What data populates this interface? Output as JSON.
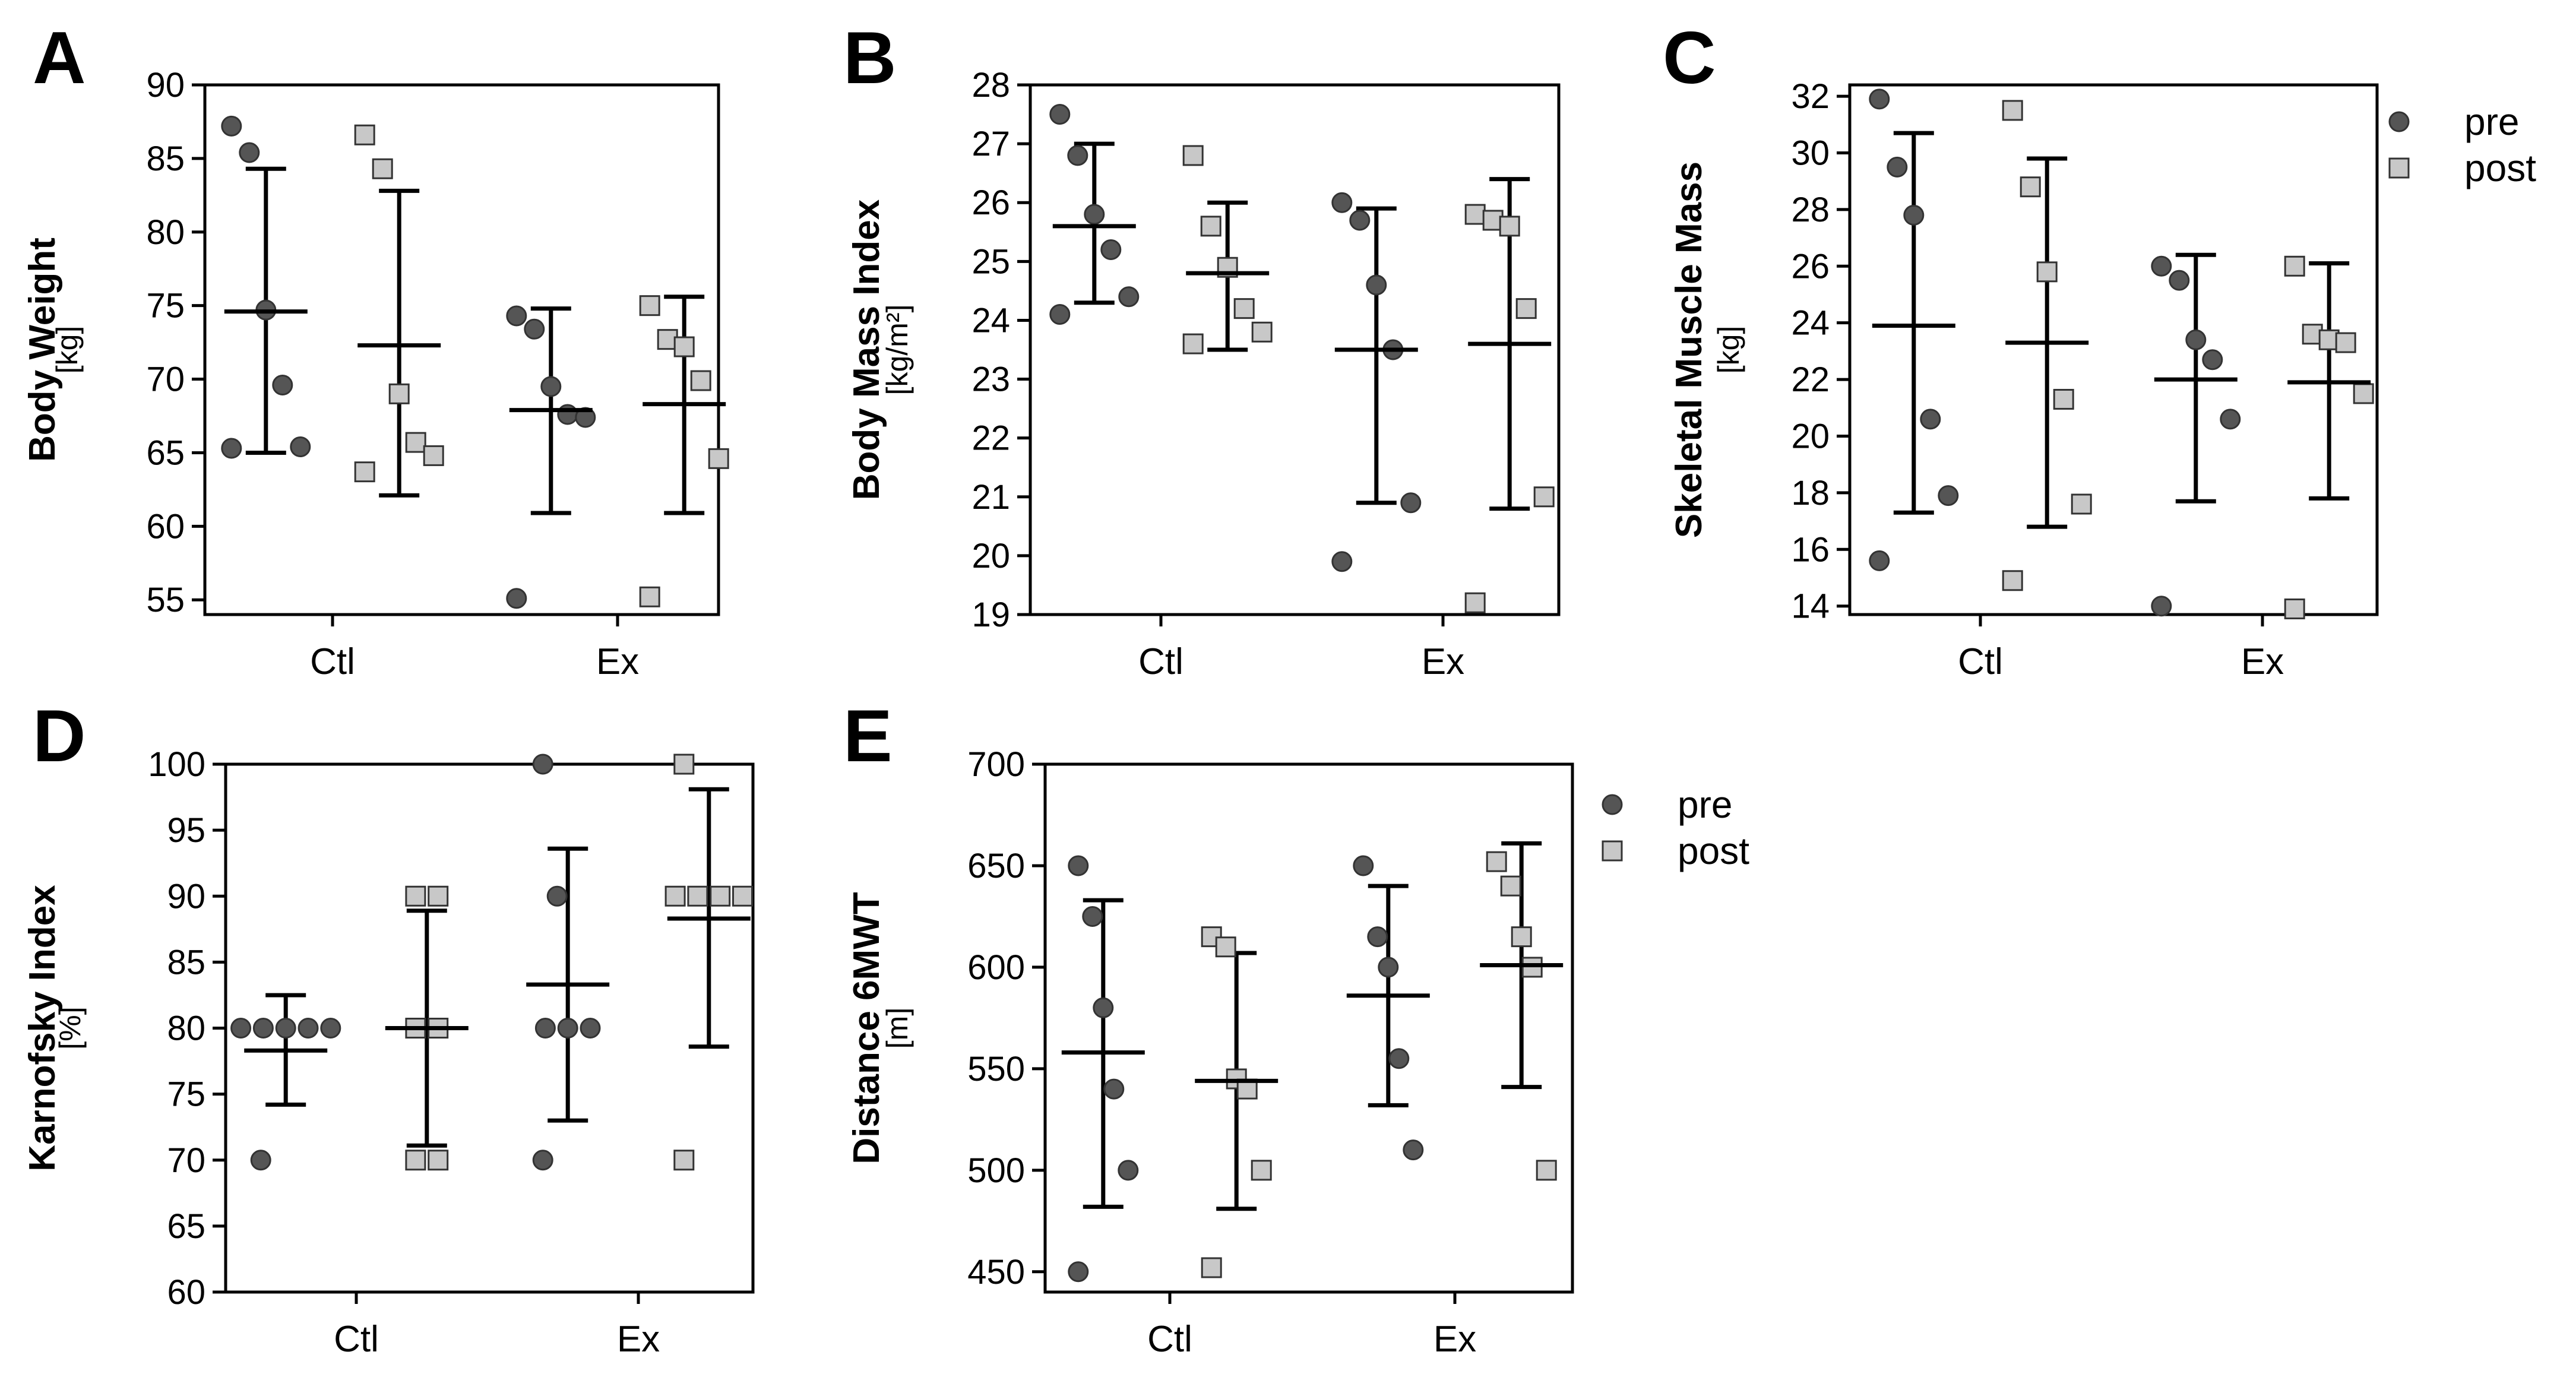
{
  "legend": {
    "entries": [
      {
        "name": "pre",
        "marker": "circle",
        "color": "#555555"
      },
      {
        "name": "post",
        "marker": "square",
        "color": "#c8c8c8"
      }
    ]
  },
  "colors": {
    "pre": "#555555",
    "post": "#c8c8c8",
    "axis": "#000000",
    "stroke": "#333333"
  },
  "chart_data": [
    {
      "panel": "A",
      "type": "scatter",
      "ylabel": "Body Weight",
      "yunit": "[kg]",
      "ylim": [
        54,
        90
      ],
      "yticks": [
        55,
        60,
        65,
        70,
        75,
        80,
        85,
        90
      ],
      "categories": [
        "Ctl",
        "Ex"
      ],
      "series": [
        {
          "name": "pre",
          "groups": [
            {
              "category": "Ctl",
              "values": [
                87.2,
                85.4,
                74.7,
                69.6,
                65.4,
                65.3
              ],
              "mean": 74.6,
              "sd_low": 65.0,
              "sd_high": 84.3
            },
            {
              "category": "Ex",
              "values": [
                74.3,
                73.4,
                69.5,
                67.6,
                67.4,
                55.1
              ],
              "mean": 67.9,
              "sd_low": 60.9,
              "sd_high": 74.8
            }
          ]
        },
        {
          "name": "post",
          "groups": [
            {
              "category": "Ctl",
              "values": [
                86.6,
                84.3,
                69.0,
                65.7,
                64.8,
                63.7
              ],
              "mean": 72.3,
              "sd_low": 62.1,
              "sd_high": 82.8
            },
            {
              "category": "Ex",
              "values": [
                75.0,
                72.7,
                72.2,
                69.9,
                64.6,
                55.2
              ],
              "mean": 68.3,
              "sd_low": 60.9,
              "sd_high": 75.6
            }
          ]
        }
      ]
    },
    {
      "panel": "B",
      "type": "scatter",
      "ylabel": "Body Mass Index",
      "yunit": "[kg/m²]",
      "ylim": [
        19,
        28
      ],
      "yticks": [
        19,
        20,
        21,
        22,
        23,
        24,
        25,
        26,
        27,
        28
      ],
      "categories": [
        "Ctl",
        "Ex"
      ],
      "series": [
        {
          "name": "pre",
          "groups": [
            {
              "category": "Ctl",
              "values": [
                27.5,
                26.8,
                25.8,
                25.2,
                24.4,
                24.1
              ],
              "mean": 25.6,
              "sd_low": 24.3,
              "sd_high": 27.0
            },
            {
              "category": "Ex",
              "values": [
                26.0,
                25.7,
                24.6,
                23.5,
                20.9,
                19.9
              ],
              "mean": 23.5,
              "sd_low": 20.9,
              "sd_high": 25.9
            }
          ]
        },
        {
          "name": "post",
          "groups": [
            {
              "category": "Ctl",
              "values": [
                26.8,
                25.6,
                24.9,
                24.2,
                23.8,
                23.6
              ],
              "mean": 24.8,
              "sd_low": 23.5,
              "sd_high": 26.0
            },
            {
              "category": "Ex",
              "values": [
                25.8,
                25.7,
                25.6,
                24.2,
                21.0,
                19.2
              ],
              "mean": 23.6,
              "sd_low": 20.8,
              "sd_high": 26.4
            }
          ]
        }
      ]
    },
    {
      "panel": "C",
      "type": "scatter",
      "ylabel": "Skeletal Muscle Mass",
      "yunit": "[kg]",
      "ylim": [
        13.7,
        32.4
      ],
      "yticks": [
        14,
        16,
        18,
        20,
        22,
        24,
        26,
        28,
        30,
        32
      ],
      "categories": [
        "Ctl",
        "Ex"
      ],
      "series": [
        {
          "name": "pre",
          "groups": [
            {
              "category": "Ctl",
              "values": [
                31.9,
                29.5,
                27.8,
                20.6,
                17.9,
                15.6
              ],
              "mean": 23.9,
              "sd_low": 17.3,
              "sd_high": 30.7
            },
            {
              "category": "Ex",
              "values": [
                26.0,
                25.5,
                23.4,
                22.7,
                20.6,
                14.0
              ],
              "mean": 22.0,
              "sd_low": 17.7,
              "sd_high": 26.4
            }
          ]
        },
        {
          "name": "post",
          "groups": [
            {
              "category": "Ctl",
              "values": [
                31.5,
                28.8,
                25.8,
                21.3,
                17.6,
                14.9
              ],
              "mean": 23.3,
              "sd_low": 16.8,
              "sd_high": 29.8
            },
            {
              "category": "Ex",
              "values": [
                26.0,
                23.6,
                23.4,
                23.3,
                21.5,
                13.9
              ],
              "mean": 21.9,
              "sd_low": 17.8,
              "sd_high": 26.1
            }
          ]
        }
      ]
    },
    {
      "panel": "D",
      "type": "scatter",
      "ylabel": "Karnofsky  Index",
      "yunit": "[%]",
      "ylim": [
        60,
        100
      ],
      "yticks": [
        60,
        65,
        70,
        75,
        80,
        85,
        90,
        95,
        100
      ],
      "categories": [
        "Ctl",
        "Ex"
      ],
      "series": [
        {
          "name": "pre",
          "groups": [
            {
              "category": "Ctl",
              "values": [
                80,
                80,
                80,
                80,
                80,
                70
              ],
              "mean": 78.3,
              "sd_low": 74.2,
              "sd_high": 82.5
            },
            {
              "category": "Ex",
              "values": [
                100,
                90,
                80,
                80,
                80,
                70
              ],
              "mean": 83.3,
              "sd_low": 73.0,
              "sd_high": 93.6
            }
          ]
        },
        {
          "name": "post",
          "groups": [
            {
              "category": "Ctl",
              "values": [
                90,
                90,
                80,
                80,
                70,
                70
              ],
              "mean": 80.0,
              "sd_low": 71.1,
              "sd_high": 88.9
            },
            {
              "category": "Ex",
              "values": [
                100,
                90,
                90,
                90,
                90,
                70
              ],
              "mean": 88.3,
              "sd_low": 78.6,
              "sd_high": 98.1
            }
          ]
        }
      ]
    },
    {
      "panel": "E",
      "type": "scatter",
      "ylabel": "Distance 6MWT",
      "yunit": "[m]",
      "ylim": [
        440,
        700
      ],
      "yticks": [
        450,
        500,
        550,
        600,
        650,
        700
      ],
      "categories": [
        "Ctl",
        "Ex"
      ],
      "series": [
        {
          "name": "pre",
          "groups": [
            {
              "category": "Ctl",
              "values": [
                650,
                625,
                580,
                540,
                500,
                450
              ],
              "mean": 558,
              "sd_low": 482,
              "sd_high": 633
            },
            {
              "category": "Ex",
              "values": [
                650,
                615,
                600,
                555,
                510
              ],
              "mean": 586,
              "sd_low": 532,
              "sd_high": 640
            }
          ]
        },
        {
          "name": "post",
          "groups": [
            {
              "category": "Ctl",
              "values": [
                615,
                610,
                545,
                540,
                500,
                452
              ],
              "mean": 544,
              "sd_low": 481,
              "sd_high": 607
            },
            {
              "category": "Ex",
              "values": [
                652,
                640,
                615,
                600,
                500
              ],
              "mean": 601,
              "sd_low": 541,
              "sd_high": 661
            }
          ]
        }
      ]
    }
  ]
}
